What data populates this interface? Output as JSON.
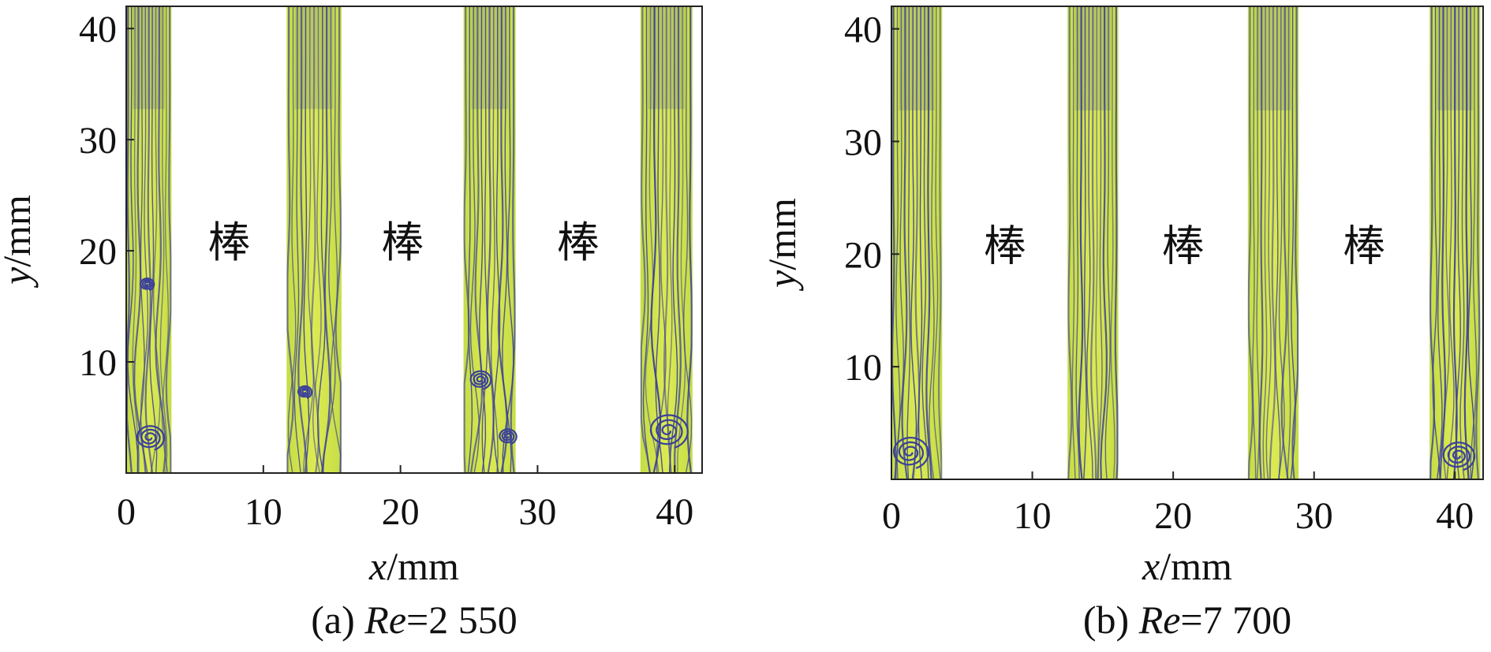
{
  "chart_data": [
    {
      "type": "streamline",
      "caption": {
        "prefix": "(a) ",
        "italic": "Re",
        "suffix": "=2 550"
      },
      "xlabel": {
        "italic": "x",
        "unit": "/mm"
      },
      "ylabel": {
        "italic": "y",
        "unit": "/mm"
      },
      "xlim": [
        0,
        42
      ],
      "ylim": [
        0,
        42
      ],
      "xticks": [
        0,
        10,
        20,
        30,
        40
      ],
      "yticks": [
        10,
        20,
        30,
        40
      ],
      "flow_strips": [
        [
          0,
          3.3
        ],
        [
          11.7,
          15.7
        ],
        [
          24.6,
          28.4
        ],
        [
          37.5,
          41.3
        ]
      ],
      "rod_label": "棒",
      "rod_label_y": 20.7,
      "vortices": [
        {
          "x": 1.7,
          "y": 3.2,
          "r": 0.8
        },
        {
          "x": 1.5,
          "y": 17.0,
          "r": 0.4
        },
        {
          "x": 13.0,
          "y": 7.3,
          "r": 0.4
        },
        {
          "x": 25.8,
          "y": 8.4,
          "r": 0.6
        },
        {
          "x": 27.8,
          "y": 3.3,
          "r": 0.5
        },
        {
          "x": 39.5,
          "y": 3.8,
          "r": 1.1
        }
      ]
    },
    {
      "type": "streamline",
      "caption": {
        "prefix": "(b) ",
        "italic": "Re",
        "suffix": "=7 700"
      },
      "xlabel": {
        "italic": "x",
        "unit": "/mm"
      },
      "ylabel": {
        "italic": "y",
        "unit": "/mm"
      },
      "xlim": [
        0,
        42
      ],
      "ylim": [
        0,
        42
      ],
      "xticks": [
        0,
        10,
        20,
        30,
        40
      ],
      "yticks": [
        10,
        20,
        30,
        40
      ],
      "flow_strips": [
        [
          0,
          3.6
        ],
        [
          12.5,
          16.1
        ],
        [
          25.3,
          28.9
        ],
        [
          38.2,
          41.8
        ]
      ],
      "rod_label": "棒",
      "rod_label_y": 20.7,
      "vortices": [
        {
          "x": 1.3,
          "y": 2.4,
          "r": 1.0
        },
        {
          "x": 40.2,
          "y": 2.1,
          "r": 0.9
        }
      ]
    }
  ],
  "colors": {
    "strip": "#c6dd45",
    "strip_light": "#dcea52",
    "streamline": "#3a3f9a",
    "axis": "#222222"
  }
}
